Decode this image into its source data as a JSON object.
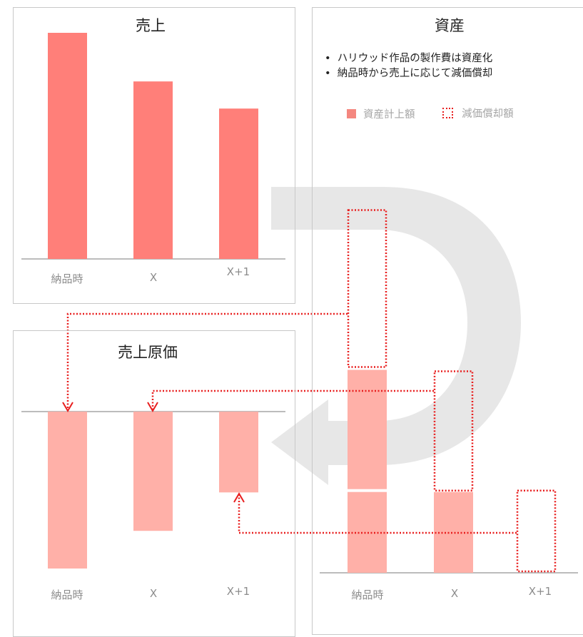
{
  "panels": {
    "sales": {
      "title": "売上"
    },
    "cogs": {
      "title": "売上原価"
    },
    "assets": {
      "title": "資産",
      "bullets": [
        "ハリウッド作品の製作費は資産化",
        "納品時から売上に応じて減価償却"
      ],
      "legend": {
        "capitalized": "資産計上額",
        "amortization": "減価償却額"
      }
    }
  },
  "categories": [
    "納品時",
    "X",
    "X+1"
  ],
  "colors": {
    "sales_bar": "#ff7f79",
    "cogs_bar": "#ffb0a8",
    "asset_bar": "#ffb0a8",
    "dotted": "#e81e1e",
    "axis": "#a6a6a6",
    "big_arrow": "#e7e7e7"
  },
  "chart_data": [
    {
      "type": "bar",
      "title": "売上",
      "categories": [
        "納品時",
        "X",
        "X+1"
      ],
      "values": [
        100,
        78.5,
        66.5
      ]
    },
    {
      "type": "bar",
      "title": "売上原価",
      "categories": [
        "納品時",
        "X",
        "X+1"
      ],
      "values": [
        -100,
        -76,
        -51.5
      ]
    },
    {
      "type": "bar",
      "title": "資産",
      "categories": [
        "納品時",
        "X",
        "X+1"
      ],
      "series": [
        {
          "name": "資産計上額",
          "values": [
            227.5,
            51.5,
            0
          ]
        },
        {
          "name": "減価償却額",
          "values": [
            100,
            76,
            51.5
          ]
        }
      ]
    }
  ]
}
